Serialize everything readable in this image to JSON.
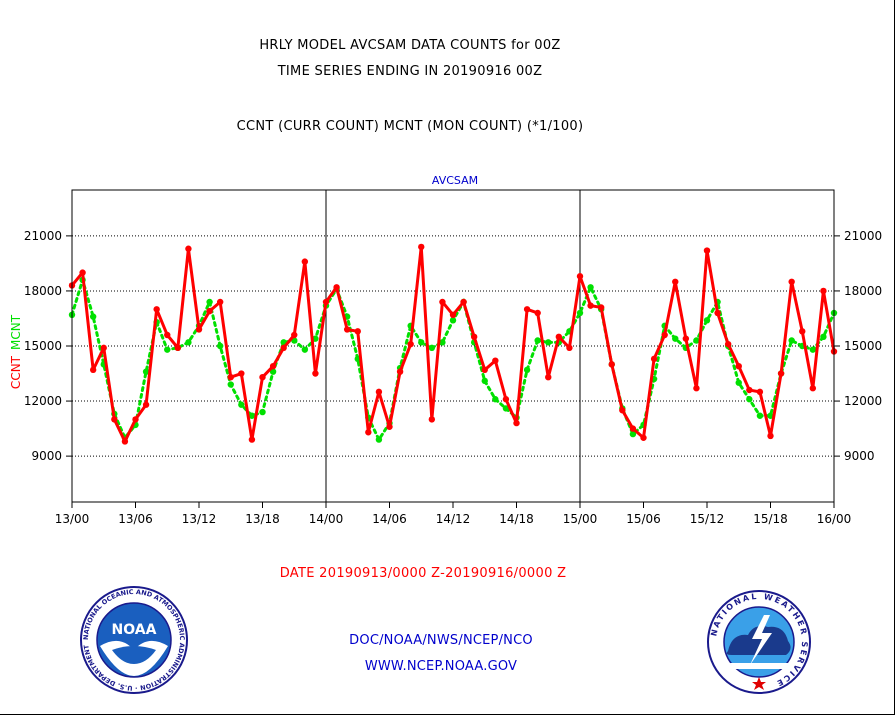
{
  "header": {
    "title_line1": "HRLY MODEL AVCSAM DATA COUNTS for 00Z",
    "title_line2": "TIME SERIES ENDING IN 20190916 00Z",
    "subtitle": "CCNT (CURR COUNT) MCNT (MON COUNT) (*1/100)"
  },
  "footer": {
    "date_range": "DATE 20190913/0000 Z-20190916/0000 Z",
    "org_line": "DOC/NOAA/NWS/NCEP/NCO",
    "url": "WWW.NCEP.NOAA.GOV"
  },
  "logos": {
    "noaa_text": "NOAA",
    "nws_ring_text": "NATIONAL WEATHER SERVICE",
    "noaa_ring_text": "NATIONAL OCEANIC AND ATMOSPHERIC ADMINISTRATION · U.S. DEPARTMENT OF COMMERCE"
  },
  "colors": {
    "ccnt": "#ff0000",
    "mcnt": "#00e000",
    "plot_label": "#0000cc",
    "axis": "#000000"
  },
  "chart_data": {
    "type": "line",
    "title": "AVCSAM",
    "ylabel_left": "CCNT",
    "ylabel_right": "MCNT",
    "ylim": [
      6500,
      23500
    ],
    "yticks": [
      9000,
      12000,
      15000,
      18000,
      21000
    ],
    "xtick_labels": [
      "13/00",
      "13/06",
      "13/12",
      "13/18",
      "14/00",
      "14/06",
      "14/12",
      "14/18",
      "15/00",
      "15/06",
      "15/12",
      "15/18",
      "16/00"
    ],
    "grid": "horizontal-dotted",
    "x": [
      0,
      1,
      2,
      3,
      4,
      5,
      6,
      7,
      8,
      9,
      10,
      11,
      12,
      13,
      14,
      15,
      16,
      17,
      18,
      19,
      20,
      21,
      22,
      23,
      24,
      25,
      26,
      27,
      28,
      29,
      30,
      31,
      32,
      33,
      34,
      35,
      36,
      37,
      38,
      39,
      40,
      41,
      42,
      43,
      44,
      45,
      46,
      47,
      48,
      49,
      50,
      51,
      52,
      53,
      54,
      55,
      56,
      57,
      58,
      59,
      60,
      61,
      62,
      63,
      64,
      65,
      66,
      67,
      68,
      69,
      70,
      71,
      72
    ],
    "series": [
      {
        "name": "CCNT",
        "style": "solid",
        "values": [
          18300,
          19000,
          13700,
          14900,
          11000,
          9800,
          11000,
          11800,
          17000,
          15600,
          14900,
          20300,
          15900,
          16900,
          17400,
          13300,
          13500,
          9900,
          13300,
          13900,
          14900,
          15600,
          19600,
          13500,
          17400,
          18200,
          15900,
          15800,
          10300,
          12500,
          10600,
          13600,
          15100,
          20400,
          11000,
          17400,
          16700,
          17400,
          15500,
          13700,
          14200,
          12100,
          10800,
          17000,
          16800,
          13300,
          15500,
          14900,
          18800,
          17200,
          17100,
          14000,
          11500,
          10500,
          10000,
          14300,
          15600,
          18500,
          15400,
          12700,
          20200,
          16800,
          15100,
          13900,
          12600,
          12500,
          10100,
          13500,
          18500,
          15800,
          12700,
          18000,
          14700
        ]
      },
      {
        "name": "MCNT",
        "style": "dotted",
        "values": [
          16700,
          18600,
          16600,
          14000,
          11300,
          10000,
          10700,
          13600,
          16300,
          14800,
          14900,
          15200,
          16100,
          17400,
          15000,
          12900,
          11800,
          11200,
          11400,
          13600,
          15200,
          15300,
          14800,
          15400,
          17200,
          18100,
          16600,
          14300,
          11100,
          9900,
          10800,
          13800,
          16100,
          15200,
          14900,
          15200,
          16400,
          17400,
          15200,
          13100,
          12100,
          11600,
          11100,
          13700,
          15300,
          15200,
          15200,
          15800,
          16800,
          18200,
          17000,
          14000,
          11600,
          10200,
          10700,
          13200,
          16100,
          15400,
          14900,
          15300,
          16400,
          17400,
          15000,
          13000,
          12100,
          11200,
          11200,
          13500,
          15300,
          15000,
          14800,
          15500,
          16800
        ]
      }
    ]
  }
}
